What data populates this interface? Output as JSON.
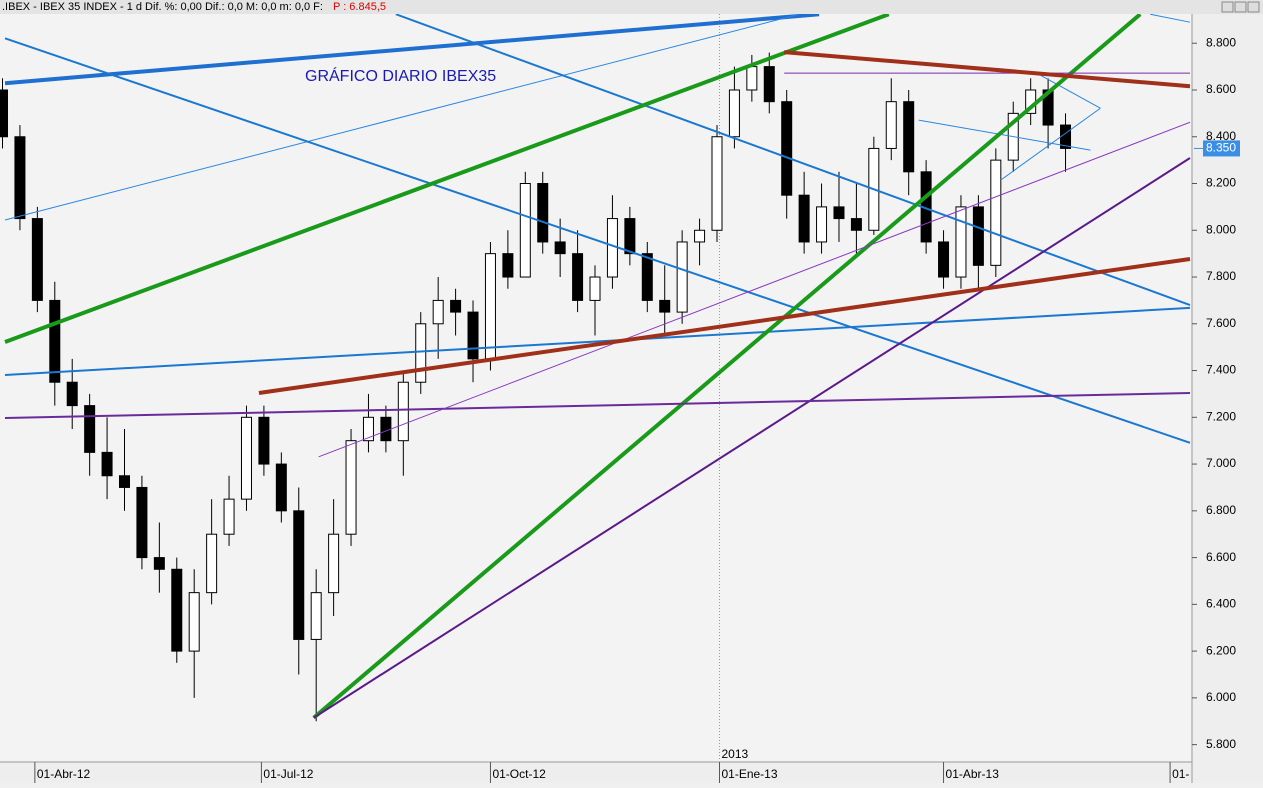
{
  "chart_data": {
    "type": "candlestick",
    "window_title": ".IBEX - IBEX 35 INDEX - 1 d Dif. %: 0,00 Dif.: 0,0 M: 0,0 m: 0,0 F:",
    "window_price": "P : 6.845,5",
    "title": "GRÁFICO DIARIO IBEX35",
    "xlim": [
      "2012-03-20",
      "2013-07-09"
    ],
    "xticks": [
      {
        "value": "2012-04-01",
        "label": "01-Abr-12"
      },
      {
        "value": "2012-07-01",
        "label": "01-Jul-12"
      },
      {
        "value": "2012-10-01",
        "label": "01-Oct-12"
      },
      {
        "value": "2013-01-01",
        "label": "01-Ene-13"
      },
      {
        "value": "2013-04-01",
        "label": "01-Abr-13"
      },
      {
        "value": "2013-07-01",
        "label": "01-"
      }
    ],
    "year_marker": {
      "value": "2013-01-01",
      "label": "2013"
    },
    "ylim": [
      5730,
      8925
    ],
    "yticks": [
      {
        "value": 5800,
        "label": "5.800"
      },
      {
        "value": 6000,
        "label": "6.000"
      },
      {
        "value": 6200,
        "label": "6.200"
      },
      {
        "value": 6400,
        "label": "6.400"
      },
      {
        "value": 6600,
        "label": "6.600"
      },
      {
        "value": 6800,
        "label": "6.800"
      },
      {
        "value": 7000,
        "label": "7.000"
      },
      {
        "value": 7200,
        "label": "7.200"
      },
      {
        "value": 7400,
        "label": "7.400"
      },
      {
        "value": 7600,
        "label": "7.600"
      },
      {
        "value": 7800,
        "label": "7.800"
      },
      {
        "value": 8000,
        "label": "8.000"
      },
      {
        "value": 8200,
        "label": "8.200"
      },
      {
        "value": 8400,
        "label": "8.400"
      },
      {
        "value": 8600,
        "label": "8.600"
      },
      {
        "value": 8800,
        "label": "8.800"
      }
    ],
    "last_price": {
      "value": 8350,
      "label": "8.350"
    },
    "up_color": "#ffffff",
    "down_color": "#000000",
    "candles": {
      "x": [
        "2012-03-19",
        "2012-03-26",
        "2012-04-02",
        "2012-04-09",
        "2012-04-16",
        "2012-04-23",
        "2012-04-30",
        "2012-05-07",
        "2012-05-14",
        "2012-05-21",
        "2012-05-28",
        "2012-06-04",
        "2012-06-11",
        "2012-06-18",
        "2012-06-25",
        "2012-07-02",
        "2012-07-09",
        "2012-07-16",
        "2012-07-23",
        "2012-07-30",
        "2012-08-06",
        "2012-08-13",
        "2012-08-20",
        "2012-08-27",
        "2012-09-03",
        "2012-09-10",
        "2012-09-17",
        "2012-09-24",
        "2012-10-01",
        "2012-10-08",
        "2012-10-15",
        "2012-10-22",
        "2012-10-29",
        "2012-11-05",
        "2012-11-12",
        "2012-11-19",
        "2012-11-26",
        "2012-12-03",
        "2012-12-10",
        "2012-12-17",
        "2012-12-24",
        "2012-12-31",
        "2013-01-07",
        "2013-01-14",
        "2013-01-21",
        "2013-01-28",
        "2013-02-04",
        "2013-02-11",
        "2013-02-18",
        "2013-02-25",
        "2013-03-04",
        "2013-03-11",
        "2013-03-18",
        "2013-03-25",
        "2013-04-01",
        "2013-04-08",
        "2013-04-15",
        "2013-04-22",
        "2013-04-29",
        "2013-05-06",
        "2013-05-13",
        "2013-05-20"
      ],
      "open": [
        8600,
        8400,
        8050,
        7700,
        7350,
        7250,
        7050,
        6950,
        6900,
        6600,
        6550,
        6200,
        6450,
        6700,
        6850,
        7200,
        7000,
        6800,
        6250,
        6450,
        6700,
        7100,
        7200,
        7100,
        7350,
        7600,
        7700,
        7650,
        7450,
        7900,
        7800,
        8200,
        7950,
        7900,
        7700,
        7800,
        8050,
        7900,
        7700,
        7650,
        7950,
        8000,
        8400,
        8600,
        8700,
        8550,
        8150,
        7950,
        8100,
        8050,
        8000,
        8350,
        8550,
        8250,
        7950,
        7800,
        8100,
        7850,
        8300,
        8500,
        8600,
        8450
      ],
      "high": [
        8650,
        8450,
        8100,
        7780,
        7450,
        7300,
        7200,
        7150,
        6950,
        6750,
        6600,
        6550,
        6850,
        6950,
        7250,
        7250,
        7050,
        6900,
        6550,
        6850,
        7150,
        7300,
        7250,
        7400,
        7650,
        7800,
        7750,
        7700,
        7950,
        8000,
        8250,
        8250,
        8050,
        8000,
        7850,
        8150,
        8100,
        7950,
        7850,
        8000,
        8050,
        8450,
        8700,
        8750,
        8760,
        8600,
        8250,
        8200,
        8250,
        8200,
        8400,
        8650,
        8600,
        8300,
        8000,
        8150,
        8150,
        8350,
        8550,
        8650,
        8650,
        8500
      ],
      "low": [
        8350,
        8000,
        7650,
        7250,
        7150,
        6950,
        6850,
        6800,
        6550,
        6450,
        6150,
        6000,
        6400,
        6650,
        6800,
        6950,
        6750,
        6100,
        5900,
        6350,
        6650,
        7050,
        7050,
        6950,
        7300,
        7450,
        7550,
        7350,
        7400,
        7750,
        7800,
        7900,
        7800,
        7650,
        7550,
        7750,
        7850,
        7650,
        7550,
        7600,
        7850,
        7950,
        8350,
        8550,
        8500,
        8050,
        7900,
        7900,
        7950,
        7900,
        7980,
        8300,
        8150,
        7900,
        7750,
        7750,
        7750,
        7800,
        8250,
        8450,
        8350,
        8250
      ],
      "close": [
        8400,
        8050,
        7700,
        7350,
        7250,
        7050,
        6950,
        6900,
        6600,
        6550,
        6200,
        6450,
        6700,
        6850,
        7200,
        7000,
        6800,
        6250,
        6450,
        6700,
        7100,
        7200,
        7100,
        7350,
        7600,
        7700,
        7650,
        7450,
        7900,
        7800,
        8200,
        7950,
        7900,
        7700,
        7800,
        8050,
        7900,
        7700,
        7650,
        7950,
        8000,
        8400,
        8600,
        8700,
        8550,
        8150,
        7950,
        8100,
        8050,
        8000,
        8350,
        8550,
        8250,
        7950,
        7800,
        8100,
        7850,
        8300,
        8500,
        8600,
        8450,
        8350
      ]
    },
    "trendlines": [
      {
        "color": "#1f6fd0",
        "width": 4,
        "points": [
          [
            "2012-03-20",
            8629
          ],
          [
            "2013-02-10",
            8924
          ]
        ]
      },
      {
        "color": "#2a86e0",
        "width": 1,
        "points": [
          [
            "2012-03-20",
            8044
          ],
          [
            "2013-02-02",
            8924
          ]
        ]
      },
      {
        "color": "#1a78d0",
        "width": 2,
        "points": [
          [
            "2012-03-20",
            8821
          ],
          [
            "2013-07-09",
            7091
          ]
        ]
      },
      {
        "color": "#1a78d0",
        "width": 2,
        "points": [
          [
            "2012-08-24",
            8924
          ],
          [
            "2013-07-09",
            7680
          ]
        ]
      },
      {
        "color": "#1a78d0",
        "width": 2,
        "points": [
          [
            "2012-03-20",
            7381
          ],
          [
            "2013-07-09",
            7668
          ]
        ]
      },
      {
        "color": "#2a86e0",
        "width": 1,
        "points": [
          [
            "2013-06-23",
            8924
          ],
          [
            "2013-07-09",
            8890
          ]
        ]
      },
      {
        "color": "#2a86e0",
        "width": 1,
        "points": [
          [
            "2013-03-22",
            8471
          ],
          [
            "2013-05-30",
            8343
          ]
        ]
      },
      {
        "color": "#2a86e0",
        "width": 1,
        "points": [
          [
            "2013-05-10",
            8663
          ],
          [
            "2013-06-03",
            8522
          ]
        ]
      },
      {
        "color": "#2a86e0",
        "width": 1,
        "points": [
          [
            "2013-06-03",
            8522
          ],
          [
            "2013-04-24",
            8215
          ]
        ]
      },
      {
        "color": "#1a9a1a",
        "width": 4,
        "points": [
          [
            "2012-03-20",
            7522
          ],
          [
            "2013-03-10",
            8924
          ]
        ]
      },
      {
        "color": "#1a9a1a",
        "width": 4,
        "points": [
          [
            "2012-07-22",
            5915
          ],
          [
            "2013-06-19",
            8924
          ]
        ]
      },
      {
        "color": "#5a1a8a",
        "width": 2,
        "points": [
          [
            "2012-07-22",
            5915
          ],
          [
            "2013-07-09",
            8309
          ]
        ]
      },
      {
        "color": "#6a2a9a",
        "width": 2,
        "points": [
          [
            "2012-03-20",
            7197
          ],
          [
            "2013-07-09",
            7304
          ]
        ]
      },
      {
        "color": "#8a3ac0",
        "width": 1,
        "points": [
          [
            "2012-07-24",
            7031
          ],
          [
            "2013-07-09",
            8462
          ]
        ]
      },
      {
        "color": "#7a2aaa",
        "width": 1,
        "points": [
          [
            "2013-01-27",
            8672
          ],
          [
            "2013-07-09",
            8672
          ]
        ]
      },
      {
        "color": "#a0301a",
        "width": 4,
        "points": [
          [
            "2012-06-30",
            7304
          ],
          [
            "2013-07-09",
            7877
          ]
        ]
      },
      {
        "color": "#a0301a",
        "width": 4,
        "points": [
          [
            "2013-01-27",
            8762
          ],
          [
            "2013-07-09",
            8616
          ]
        ]
      }
    ]
  }
}
